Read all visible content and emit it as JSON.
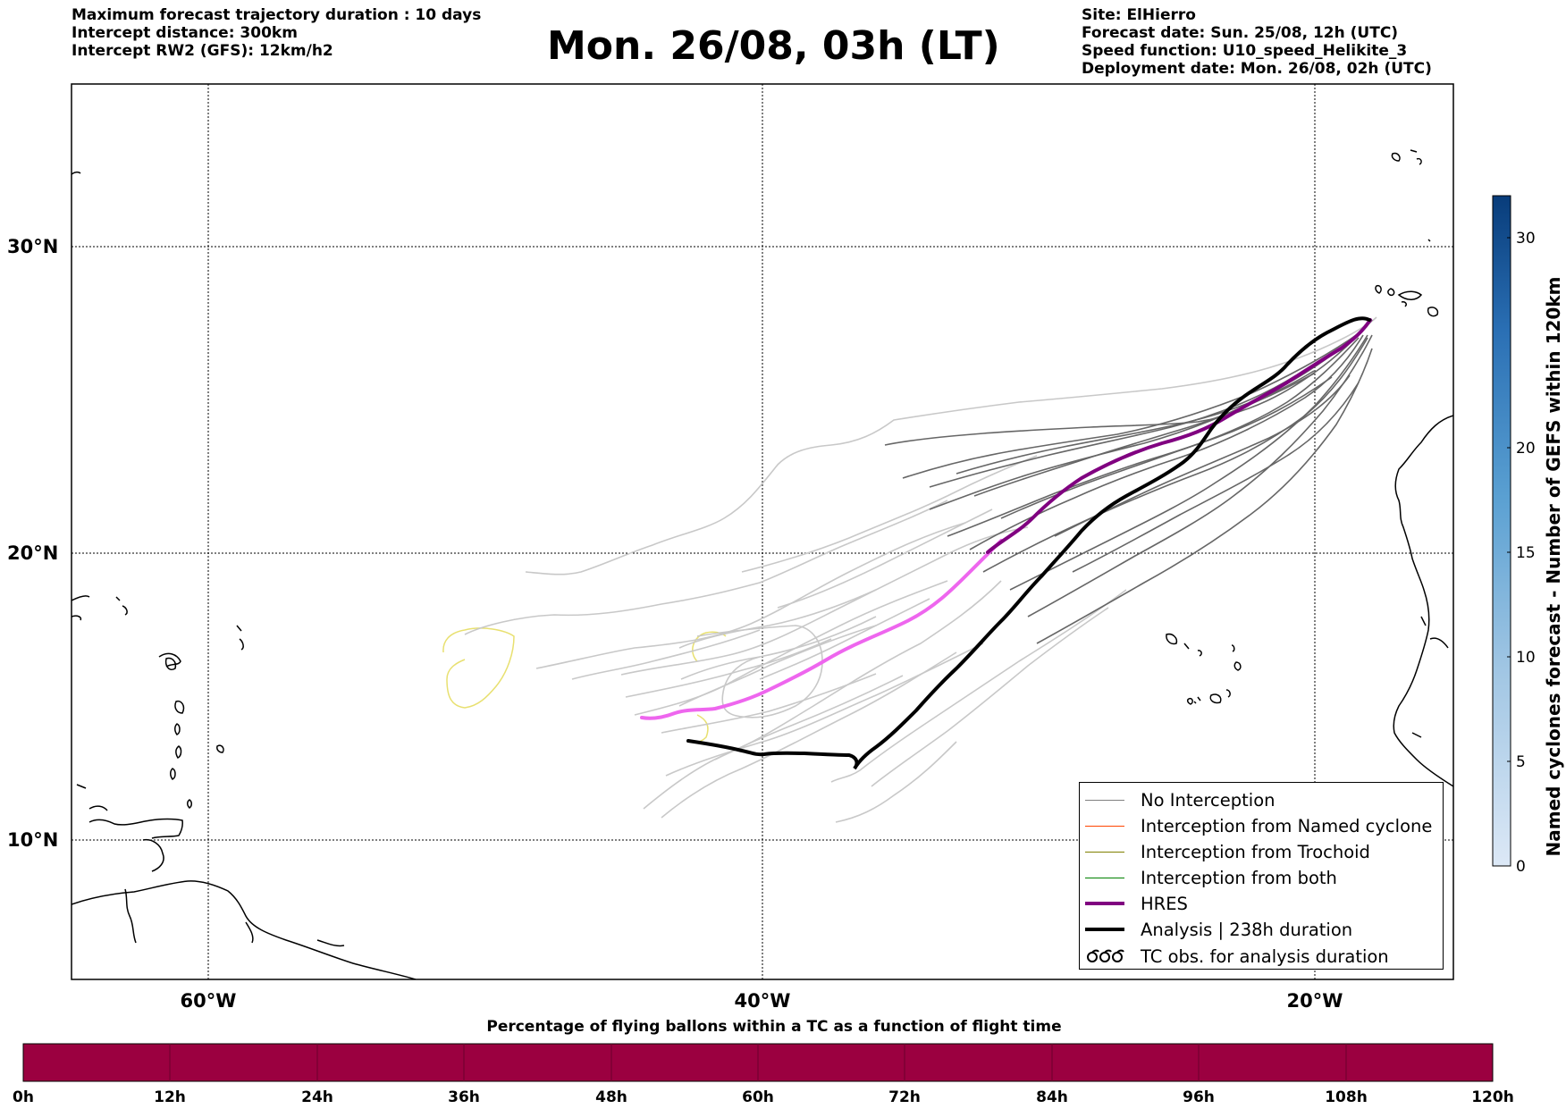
{
  "header": {
    "left_lines": [
      "Maximum forecast trajectory duration : 10 days",
      "Intercept distance: 300km",
      "Intercept RW2 (GFS):  12km/h2"
    ],
    "title": "Mon. 26/08, 03h (LT)",
    "right_lines": [
      "Site: ElHierro",
      "Forecast date: Sun. 25/08, 12h (UTC)",
      "Speed function: U10_speed_Helikite_3",
      "Deployment date: Mon. 26/08, 02h (UTC)"
    ]
  },
  "map": {
    "lat_labels": [
      "30°N",
      "20°N",
      "10°N"
    ],
    "lon_labels": [
      "60°W",
      "40°W",
      "20°W"
    ]
  },
  "legend": {
    "items": [
      {
        "label": "No Interception",
        "color": "#808080",
        "symbol": "line-thin"
      },
      {
        "label": "Interception from Named cyclone",
        "color": "#ff4500",
        "symbol": "line-thin"
      },
      {
        "label": "Interception from Trochoid",
        "color": "#808000",
        "symbol": "line-thin"
      },
      {
        "label": "Interception from both",
        "color": "#008000",
        "symbol": "line-thin"
      },
      {
        "label": "HRES",
        "color": "#800080",
        "symbol": "line-thick"
      },
      {
        "label": "Analysis | 238h duration",
        "color": "#000000",
        "symbol": "line-thick"
      },
      {
        "label": "TC obs. for analysis duration",
        "color": "#000000",
        "symbol": "cyclone-icon"
      }
    ]
  },
  "colorbar": {
    "label": "Named cyclones forecast - Number of GEFS within 120km",
    "ticks": [
      "0",
      "5",
      "10",
      "15",
      "20",
      "30"
    ],
    "colors": {
      "low": "#d9e6f5",
      "mid": "#5aa0d2",
      "high": "#083c7a"
    }
  },
  "bottom_bar": {
    "title": "Percentage of flying ballons within a TC as a function of flight time",
    "ticks": [
      "0h",
      "12h",
      "24h",
      "36h",
      "48h",
      "60h",
      "72h",
      "84h",
      "96h",
      "108h",
      "120h"
    ],
    "color": "#9b0040"
  },
  "colors": {
    "hres": "#800080",
    "hres_light": "#ee66ee",
    "analysis": "#000000",
    "ensemble_dark": "#666666",
    "ensemble_light": "#c8c8c8",
    "trochoid_yellow": "#e8e070"
  }
}
